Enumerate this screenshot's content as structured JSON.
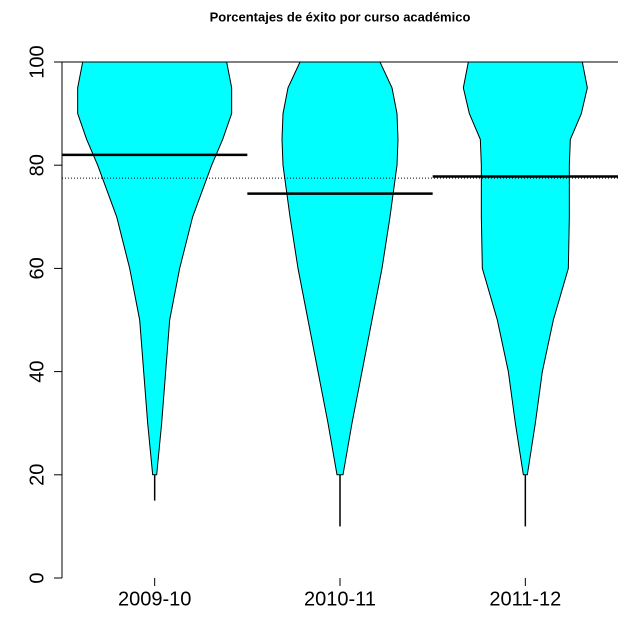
{
  "chart_data": {
    "type": "beanplot",
    "title": "Porcentajes de éxito por curso académico",
    "categories": [
      "2009-10",
      "2010-11",
      "2011-12"
    ],
    "ylim": [
      0,
      100
    ],
    "yticks": [
      0,
      20,
      40,
      60,
      80,
      100
    ],
    "color": "#00ffff",
    "density_y": [
      100,
      95,
      90,
      85,
      80,
      70,
      60,
      50,
      40,
      30,
      20
    ],
    "density": [
      [
        72,
        77,
        77,
        68,
        57,
        38,
        25,
        15,
        11,
        7,
        2
      ],
      [
        40,
        52,
        57,
        58,
        57,
        50,
        42,
        32,
        22,
        12,
        3
      ],
      [
        57,
        62,
        56,
        45,
        44,
        44,
        43,
        28,
        17,
        10,
        2
      ]
    ],
    "min": [
      15,
      10,
      10
    ],
    "means": [
      82,
      74.5,
      77.8
    ],
    "overall_mean": 77.5
  }
}
